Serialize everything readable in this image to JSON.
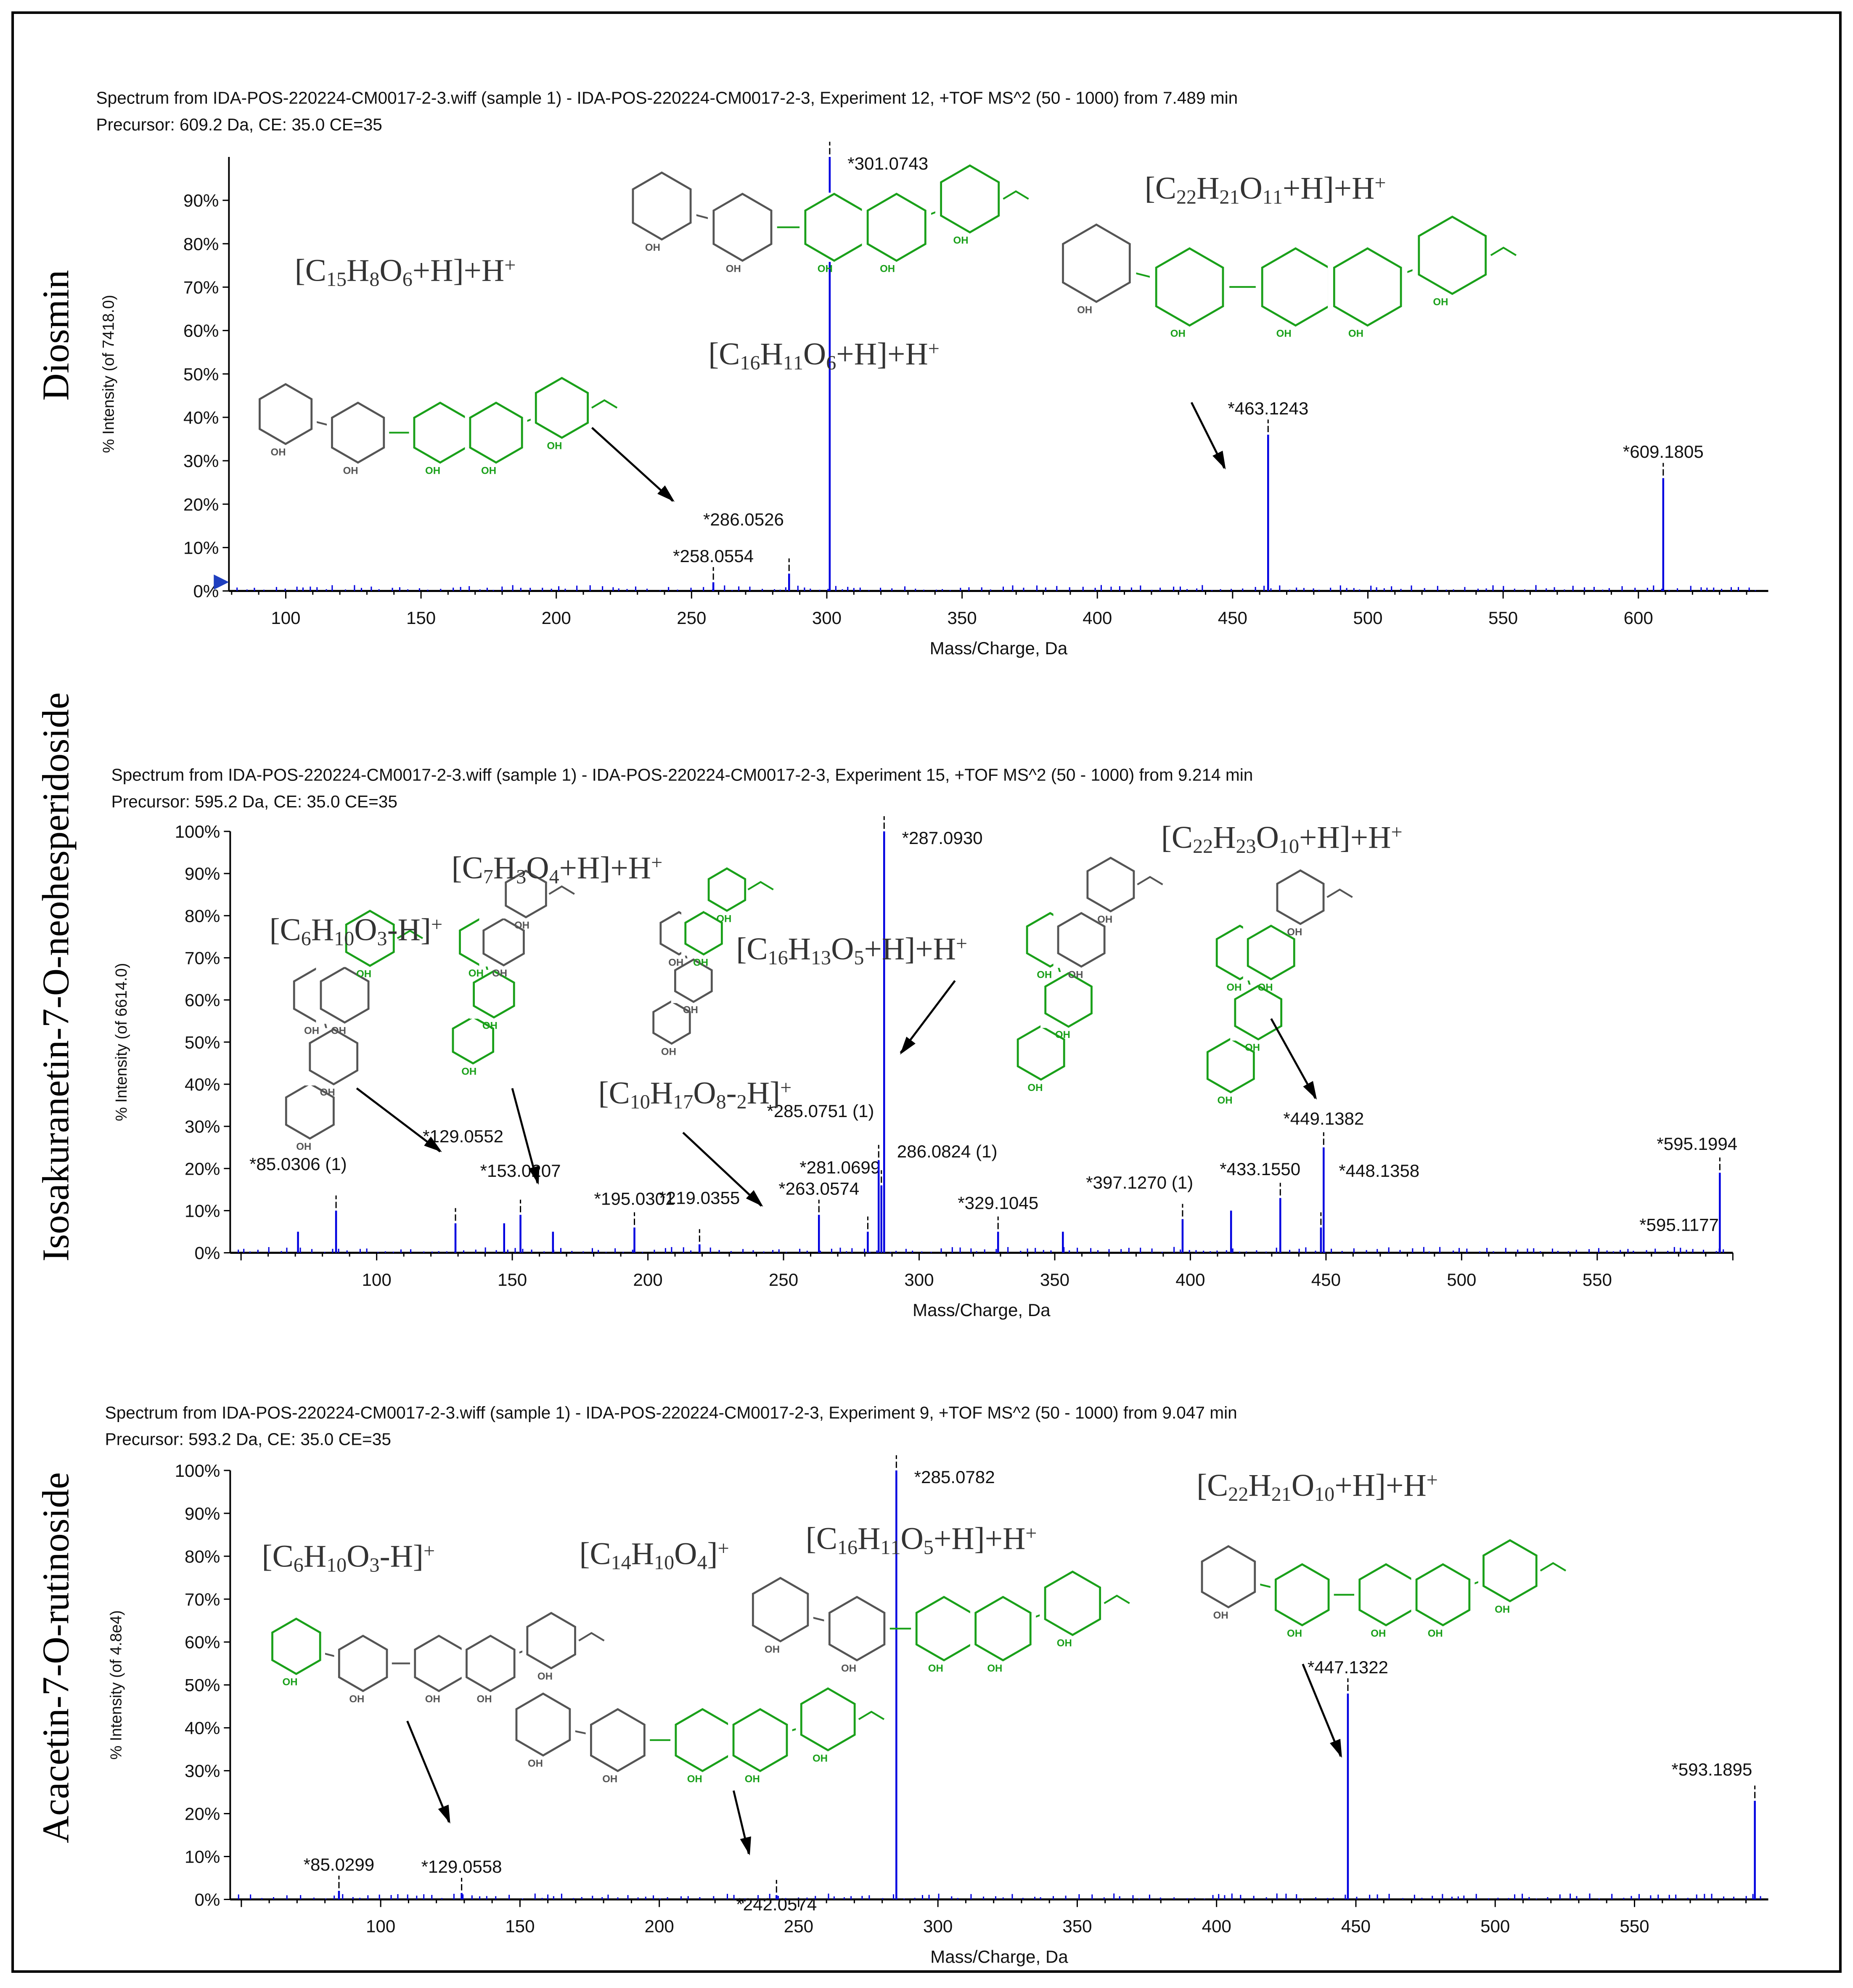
{
  "chart_data": [
    {
      "type": "bar",
      "compound": "Diosmin",
      "title": "Spectrum from IDA-POS-220224-CM0017-2-3.wiff (sample 1) - IDA-POS-220224-CM0017-2-3, Experiment 12, +TOF MS^2 (50 - 1000) from 7.489 min",
      "subtitle": "Precursor: 609.2 Da, CE: 35.0 CE=35",
      "xlabel": "Mass/Charge, Da",
      "ylabel": "% Intensity (of 7418.0)",
      "xlim": [
        79,
        648
      ],
      "ylim": [
        0,
        100
      ],
      "xticks": [
        100,
        150,
        200,
        250,
        300,
        350,
        400,
        450,
        500,
        550,
        600
      ],
      "yticks": [
        "0%",
        "10%",
        "20%",
        "30%",
        "40%",
        "50%",
        "60%",
        "70%",
        "80%",
        "90%"
      ],
      "peaks": [
        {
          "mz": 258.0554,
          "intensity": 2,
          "label": "*258.0554"
        },
        {
          "mz": 286.0526,
          "intensity": 4,
          "label": "*286.0526"
        },
        {
          "mz": 301.0743,
          "intensity": 100,
          "label": "*301.0743"
        },
        {
          "mz": 463.1243,
          "intensity": 36,
          "label": "*463.1243"
        },
        {
          "mz": 609.1805,
          "intensity": 26,
          "label": "*609.1805"
        }
      ],
      "annotations": [
        "[C15H8O6+H]+H+",
        "[C16H11O6+H]+H+",
        "[C22H21O11+H]+H+"
      ]
    },
    {
      "type": "bar",
      "compound": "Isosakuranetin-7-O-neohesperidoside",
      "title": "Spectrum from IDA-POS-220224-CM0017-2-3.wiff (sample 1) - IDA-POS-220224-CM0017-2-3, Experiment 15, +TOF MS^2 (50 - 1000) from 9.214 min",
      "subtitle": "Precursor: 595.2 Da, CE: 35.0 CE=35",
      "xlabel": "Mass/Charge, Da",
      "ylabel": "% Intensity (of 6614.0)",
      "xlim": [
        46,
        600
      ],
      "ylim": [
        0,
        100
      ],
      "xticks": [
        100,
        150,
        200,
        250,
        300,
        350,
        400,
        450,
        500,
        550
      ],
      "yticks": [
        "0%",
        "10%",
        "20%",
        "30%",
        "40%",
        "50%",
        "60%",
        "70%",
        "80%",
        "90%",
        "100%"
      ],
      "peaks": [
        {
          "mz": 71.0,
          "intensity": 5,
          "label": ""
        },
        {
          "mz": 85.0306,
          "intensity": 10,
          "label": "*85.0306 (1)"
        },
        {
          "mz": 129.0552,
          "intensity": 7,
          "label": "*129.0552"
        },
        {
          "mz": 147.0,
          "intensity": 7,
          "label": ""
        },
        {
          "mz": 153.0207,
          "intensity": 9,
          "label": "*153.0207"
        },
        {
          "mz": 165.0,
          "intensity": 5,
          "label": ""
        },
        {
          "mz": 195.0301,
          "intensity": 6,
          "label": "*195.0301"
        },
        {
          "mz": 219.0355,
          "intensity": 2,
          "label": "*219.0355"
        },
        {
          "mz": 263.0574,
          "intensity": 9,
          "label": "*263.0574"
        },
        {
          "mz": 281.0699,
          "intensity": 5,
          "label": "*281.0699"
        },
        {
          "mz": 285.0751,
          "intensity": 22,
          "label": "*285.0751 (1)"
        },
        {
          "mz": 286.0824,
          "intensity": 16,
          "label": "286.0824 (1)"
        },
        {
          "mz": 287.093,
          "intensity": 100,
          "label": "*287.0930"
        },
        {
          "mz": 329.1045,
          "intensity": 5,
          "label": "*329.1045"
        },
        {
          "mz": 353.0,
          "intensity": 5,
          "label": ""
        },
        {
          "mz": 397.127,
          "intensity": 8,
          "label": "*397.1270 (1)"
        },
        {
          "mz": 415.0,
          "intensity": 10,
          "label": ""
        },
        {
          "mz": 433.155,
          "intensity": 13,
          "label": "*433.1550"
        },
        {
          "mz": 448.1358,
          "intensity": 6,
          "label": "*448.1358"
        },
        {
          "mz": 449.1382,
          "intensity": 25,
          "label": "*449.1382"
        },
        {
          "mz": 595.1177,
          "intensity": 1,
          "label": "*595.1177"
        },
        {
          "mz": 595.1994,
          "intensity": 19,
          "label": "*595.1994"
        }
      ],
      "annotations": [
        "[C7H3O4+H]+H+",
        "[C6H10O3-H]+",
        "[C16H13O5+H]+H+",
        "[C10H17O8-2H]+",
        "[C22H23O10+H]+H+"
      ]
    },
    {
      "type": "bar",
      "compound": "Acacetin-7-O-rutinoside",
      "title": "Spectrum from IDA-POS-220224-CM0017-2-3.wiff (sample 1) - IDA-POS-220224-CM0017-2-3, Experiment 9, +TOF MS^2 (50 - 1000) from 9.047 min",
      "subtitle": "Precursor: 593.2 Da, CE: 35.0 CE=35",
      "xlabel": "Mass/Charge, Da",
      "ylabel": "% Intensity (of 4.8e4)",
      "xlim": [
        46,
        598
      ],
      "ylim": [
        0,
        100
      ],
      "xticks": [
        100,
        150,
        200,
        250,
        300,
        350,
        400,
        450,
        500,
        550
      ],
      "yticks": [
        "0%",
        "10%",
        "20%",
        "30%",
        "40%",
        "50%",
        "60%",
        "70%",
        "80%",
        "90%",
        "100%"
      ],
      "peaks": [
        {
          "mz": 85.0299,
          "intensity": 2,
          "label": "*85.0299"
        },
        {
          "mz": 129.0558,
          "intensity": 1.5,
          "label": "*129.0558"
        },
        {
          "mz": 242.0574,
          "intensity": 1,
          "label": "*242.0574"
        },
        {
          "mz": 285.0782,
          "intensity": 100,
          "label": "*285.0782"
        },
        {
          "mz": 447.1322,
          "intensity": 48,
          "label": "*447.1322"
        },
        {
          "mz": 593.1895,
          "intensity": 23,
          "label": "*593.1895"
        }
      ],
      "annotations": [
        "[C6H10O3-H]+",
        "[C14H10O4]+",
        "[C16H11O5+H]+H+",
        "[C22H21O10+H]+H+"
      ]
    }
  ],
  "colors": {
    "peak": "#0000e0",
    "label_peak": "#000000",
    "highlight": "#1aa01a",
    "structure": "#555555"
  }
}
